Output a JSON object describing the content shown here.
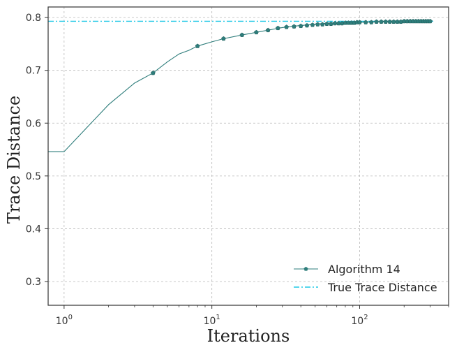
{
  "chart_data": {
    "type": "line",
    "xscale": "log",
    "xlabel": "Iterations",
    "ylabel": "Trace Distance",
    "xlim": [
      0.78,
      400
    ],
    "ylim": [
      0.255,
      0.82
    ],
    "grid": true,
    "legend_position": "lower-right",
    "x_ticks": [
      {
        "value": 1,
        "base": "10",
        "exp": "0"
      },
      {
        "value": 10,
        "base": "10",
        "exp": "1"
      },
      {
        "value": 100,
        "base": "10",
        "exp": "2"
      }
    ],
    "y_ticks": [
      {
        "value": 0.3,
        "label": "0.3"
      },
      {
        "value": 0.4,
        "label": "0.4"
      },
      {
        "value": 0.5,
        "label": "0.5"
      },
      {
        "value": 0.6,
        "label": "0.6"
      },
      {
        "value": 0.7,
        "label": "0.7"
      },
      {
        "value": 0.8,
        "label": "0.8"
      }
    ],
    "series": [
      {
        "name": "Algorithm 14",
        "color": "#2e7d7b",
        "marker": "pentagon",
        "line": [
          [
            0.5,
            0.546
          ],
          [
            1,
            0.546
          ],
          [
            2,
            0.635
          ],
          [
            3,
            0.676
          ],
          [
            4,
            0.695
          ],
          [
            5,
            0.716
          ],
          [
            6,
            0.731
          ],
          [
            7,
            0.738
          ],
          [
            8,
            0.746
          ],
          [
            10,
            0.754
          ],
          [
            12,
            0.76
          ],
          [
            16,
            0.767
          ],
          [
            20,
            0.772
          ],
          [
            25,
            0.777
          ],
          [
            30,
            0.781
          ],
          [
            40,
            0.785
          ],
          [
            50,
            0.787
          ],
          [
            60,
            0.789
          ],
          [
            80,
            0.79
          ],
          [
            100,
            0.791
          ],
          [
            150,
            0.792
          ],
          [
            200,
            0.793
          ],
          [
            300,
            0.793
          ]
        ],
        "markers": [
          [
            4,
            0.695
          ],
          [
            8,
            0.746
          ],
          [
            12,
            0.76
          ],
          [
            16,
            0.767
          ],
          [
            20,
            0.772
          ],
          [
            24,
            0.776
          ],
          [
            28,
            0.78
          ],
          [
            32,
            0.782
          ],
          [
            36,
            0.783
          ],
          [
            40,
            0.784
          ],
          [
            44,
            0.785
          ],
          [
            48,
            0.786
          ],
          [
            52,
            0.787
          ],
          [
            56,
            0.787
          ],
          [
            60,
            0.788
          ],
          [
            64,
            0.788
          ],
          [
            68,
            0.789
          ],
          [
            72,
            0.789
          ],
          [
            76,
            0.789
          ],
          [
            80,
            0.79
          ],
          [
            84,
            0.79
          ],
          [
            88,
            0.79
          ],
          [
            92,
            0.79
          ],
          [
            96,
            0.791
          ],
          [
            100,
            0.791
          ],
          [
            110,
            0.791
          ],
          [
            120,
            0.791
          ],
          [
            130,
            0.792
          ],
          [
            140,
            0.792
          ],
          [
            150,
            0.792
          ],
          [
            160,
            0.792
          ],
          [
            170,
            0.792
          ],
          [
            180,
            0.792
          ],
          [
            190,
            0.792
          ],
          [
            200,
            0.793
          ],
          [
            210,
            0.793
          ],
          [
            220,
            0.793
          ],
          [
            230,
            0.793
          ],
          [
            240,
            0.793
          ],
          [
            250,
            0.793
          ],
          [
            260,
            0.793
          ],
          [
            270,
            0.793
          ],
          [
            280,
            0.793
          ],
          [
            290,
            0.793
          ],
          [
            300,
            0.793
          ]
        ]
      },
      {
        "name": "True Trace Distance",
        "color": "#1ec8e6",
        "style": "dashdot",
        "value": 0.793
      }
    ]
  }
}
